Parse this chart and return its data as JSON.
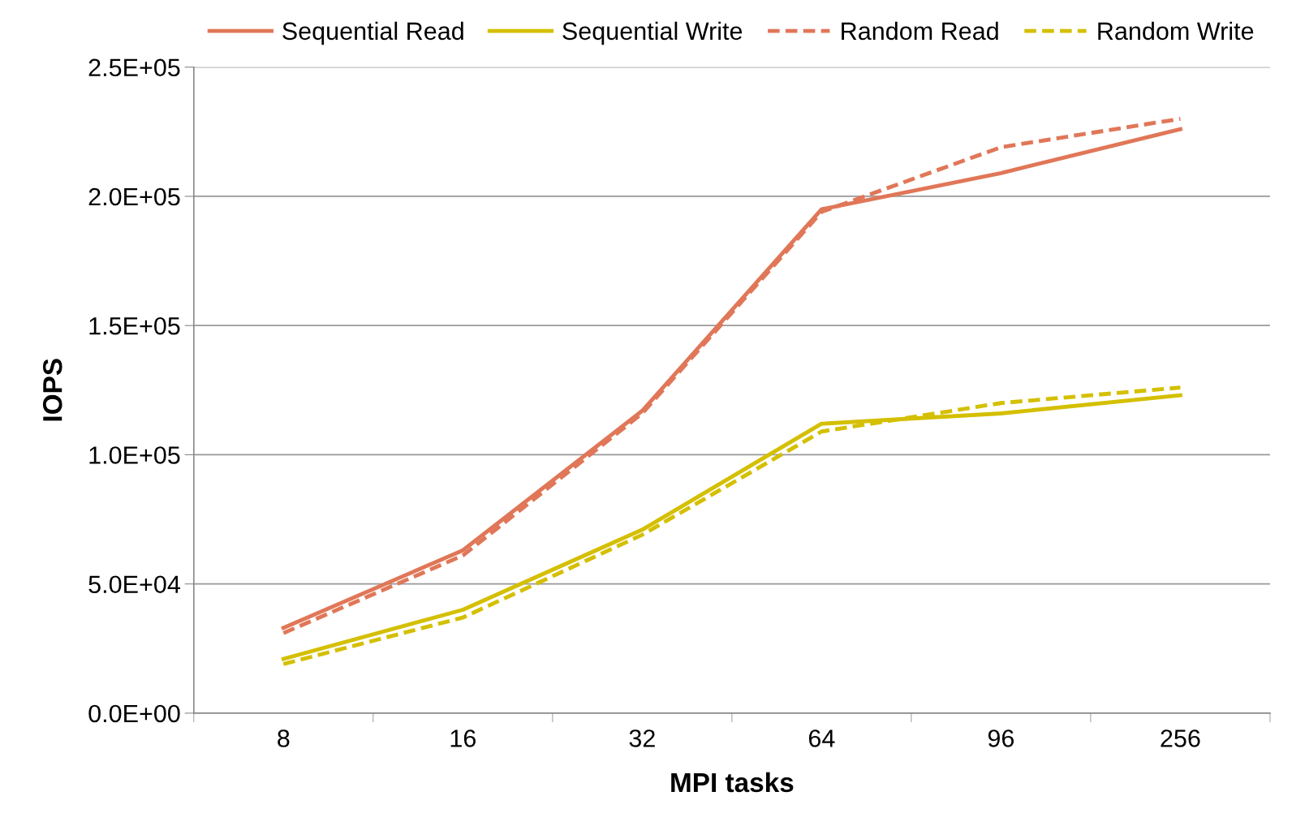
{
  "chart_data": {
    "type": "line",
    "xlabel": "MPI tasks",
    "ylabel": "IOPS",
    "categories": [
      "8",
      "16",
      "32",
      "64",
      "96",
      "256"
    ],
    "series": [
      {
        "name": "Sequential Read",
        "color": "#e07758",
        "line_style": "solid",
        "values": [
          33000,
          63000,
          117000,
          195000,
          209000,
          226000
        ]
      },
      {
        "name": "Sequential Write",
        "color": "#d4bf00",
        "line_style": "solid",
        "values": [
          21000,
          40000,
          71000,
          112000,
          116000,
          123000
        ]
      },
      {
        "name": "Random Read",
        "color": "#e07758",
        "line_style": "dashed",
        "values": [
          31000,
          61000,
          116000,
          194000,
          219000,
          230000
        ]
      },
      {
        "name": "Random Write",
        "color": "#d4bf00",
        "line_style": "dashed",
        "values": [
          19000,
          37000,
          69000,
          109000,
          120000,
          126000
        ]
      }
    ],
    "ylim": [
      0,
      250000
    ],
    "yticks": [
      {
        "value": 0,
        "label": "0.0E+00"
      },
      {
        "value": 50000,
        "label": "5.0E+04"
      },
      {
        "value": 100000,
        "label": "1.0E+05"
      },
      {
        "value": 150000,
        "label": "1.5E+05"
      },
      {
        "value": 200000,
        "label": "2.0E+05"
      },
      {
        "value": 250000,
        "label": "2.5E+05"
      }
    ],
    "grid": "y",
    "legend": "top",
    "marker": "none"
  }
}
